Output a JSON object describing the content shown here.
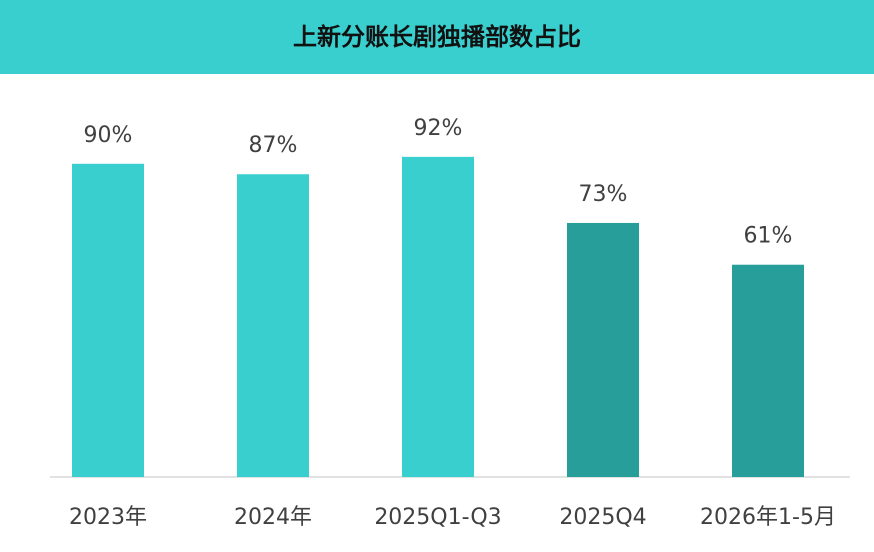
{
  "chart_data": {
    "type": "bar",
    "title": "上新分账长剧独播部数占比",
    "categories": [
      "2023年",
      "2024年",
      "2025Q1-Q3",
      "2025Q4",
      "2026年1-5月"
    ],
    "values": [
      90,
      87,
      92,
      73,
      61
    ],
    "value_labels": [
      "90%",
      "87%",
      "92%",
      "73%",
      "61%"
    ],
    "colors": [
      "#3acfcf",
      "#3acfcf",
      "#3acfcf",
      "#289e9b",
      "#289e9b"
    ]
  }
}
